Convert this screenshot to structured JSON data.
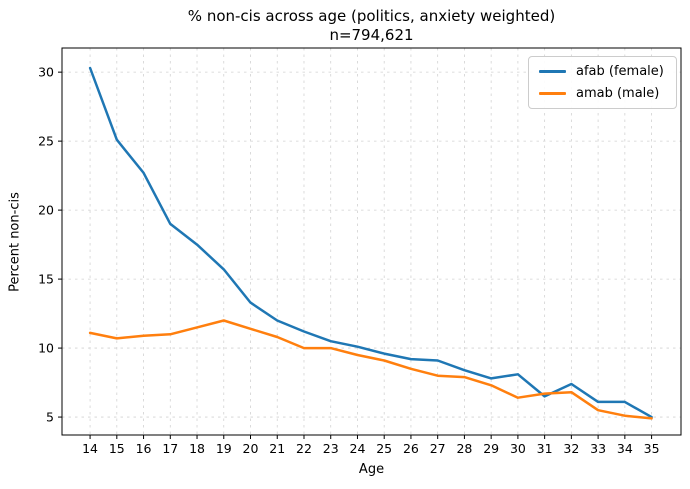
{
  "chart_data": {
    "type": "line",
    "title": "% non-cis across age (politics, anxiety weighted)",
    "subtitle": "n=794,621",
    "xlabel": "Age",
    "ylabel": "Percent non-cis",
    "x": [
      14,
      15,
      16,
      17,
      18,
      19,
      20,
      21,
      22,
      23,
      24,
      25,
      26,
      27,
      28,
      29,
      30,
      31,
      32,
      33,
      34,
      35
    ],
    "series": [
      {
        "name": "afab (female)",
        "color": "#1f77b4",
        "values": [
          30.3,
          25.1,
          22.7,
          19.0,
          17.5,
          15.7,
          13.3,
          12.0,
          11.2,
          10.5,
          10.1,
          9.6,
          9.2,
          9.1,
          8.4,
          7.8,
          8.1,
          6.5,
          7.4,
          6.1,
          6.1,
          5.0
        ]
      },
      {
        "name": "amab (male)",
        "color": "#ff7f0e",
        "values": [
          11.1,
          10.7,
          10.9,
          11.0,
          11.5,
          12.0,
          11.4,
          10.8,
          10.0,
          10.0,
          9.5,
          9.1,
          8.5,
          8.0,
          7.9,
          7.3,
          6.4,
          6.7,
          6.8,
          5.5,
          5.1,
          4.9
        ]
      }
    ],
    "xticks": [
      14,
      15,
      16,
      17,
      18,
      19,
      20,
      21,
      22,
      23,
      24,
      25,
      26,
      27,
      28,
      29,
      30,
      31,
      32,
      33,
      34,
      35
    ],
    "yticks": [
      5,
      10,
      15,
      20,
      25,
      30
    ],
    "xlim": [
      12.95,
      36.1
    ],
    "ylim": [
      3.7,
      31.75
    ],
    "grid": true,
    "grid_color": "#d2d2d2",
    "spine_color": "#000000",
    "legend_position": "upper right",
    "line_width": 2.5
  }
}
